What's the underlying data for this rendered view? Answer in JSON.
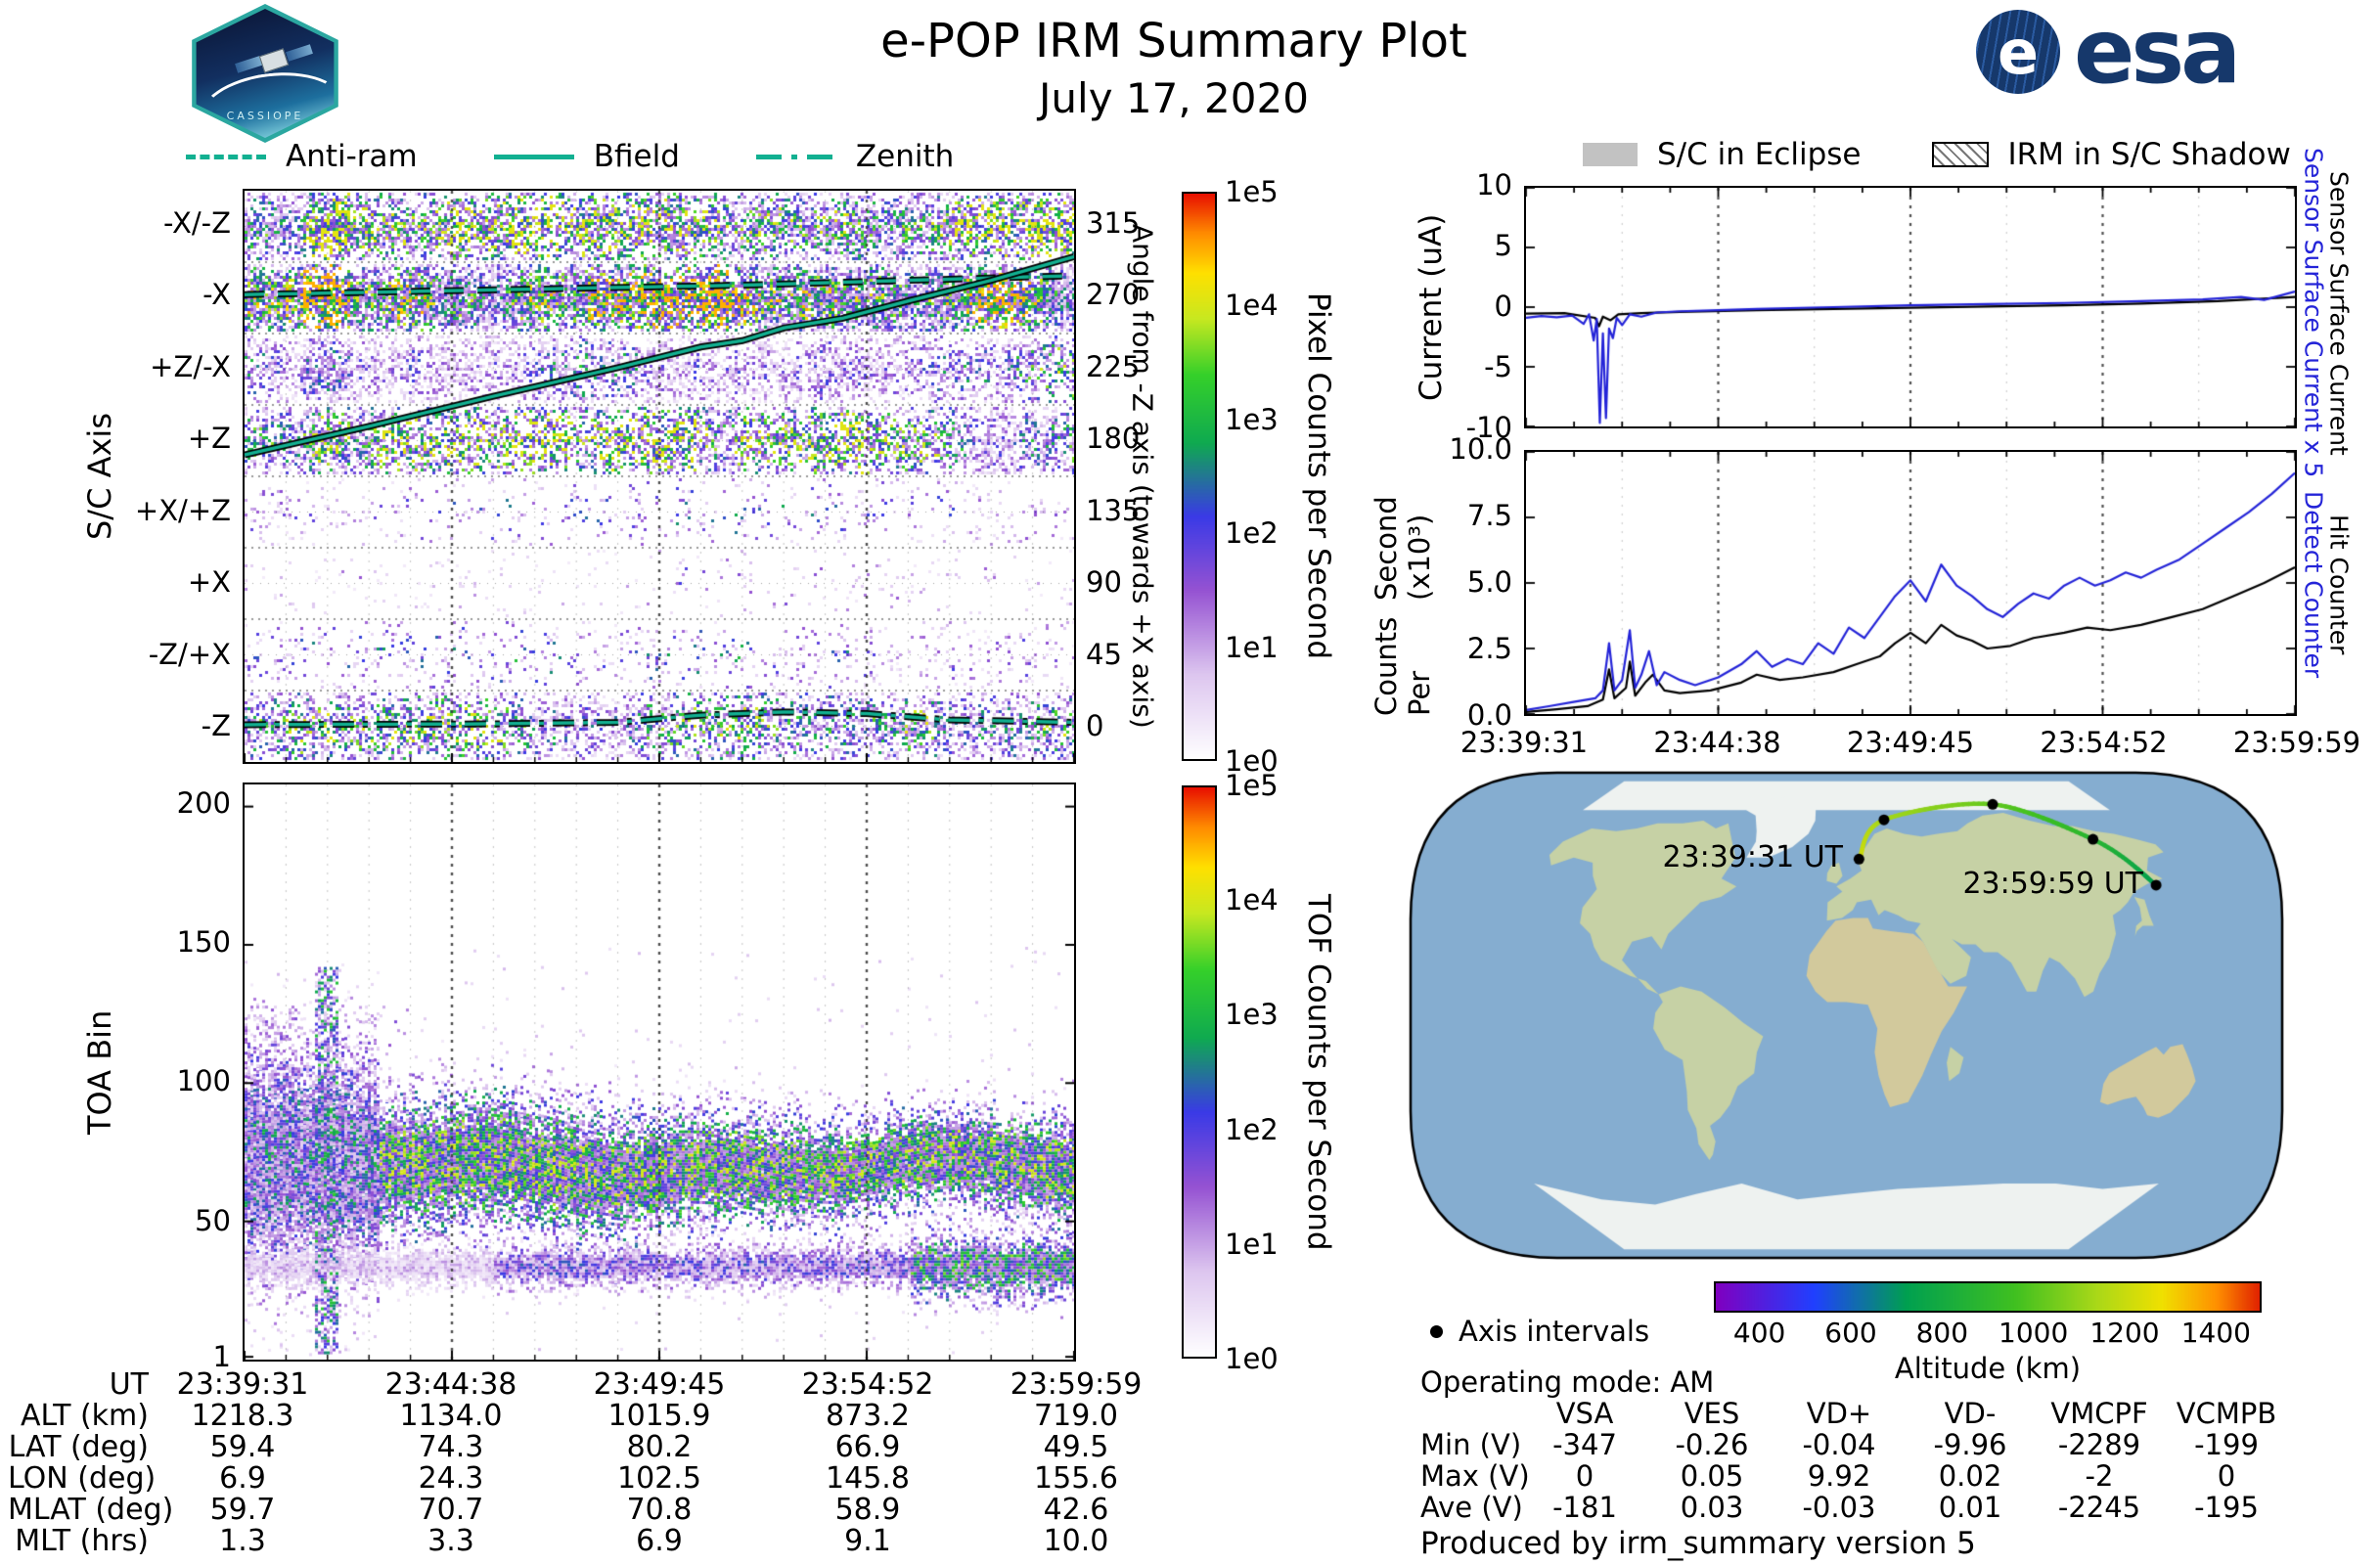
{
  "header": {
    "title": "e-POP IRM Summary Plot",
    "date": "July 17, 2020",
    "cassiope_text": "CASSIOPE",
    "esa_globe": "e",
    "esa_text": "esa"
  },
  "colors": {
    "overlay_teal": "#12b091",
    "series_blue": "#2424d8",
    "series_black": "#000000",
    "esa_blue": "#16386b",
    "ocean": "#85add0",
    "land_green": "#c6d1a5",
    "land_tan": "#d2c99c",
    "ice": "#eef2f0",
    "eclipse_gray": "#c2c2c2",
    "spectro_colormap": [
      "#ffffff",
      "#ddc6ef",
      "#9552d2",
      "#3a3ae6",
      "#0faa50",
      "#35d02a",
      "#c8e820",
      "#ffe000",
      "#ff8c00",
      "#e81000"
    ],
    "spectro_stops": [
      0,
      0.15,
      0.3,
      0.43,
      0.56,
      0.68,
      0.78,
      0.86,
      0.93,
      1.0
    ],
    "alt_colormap": [
      "#8000c0",
      "#2040ff",
      "#00a050",
      "#40c020",
      "#aad818",
      "#f0e000",
      "#ff9000",
      "#e02000"
    ],
    "alt_stops": [
      0,
      0.18,
      0.35,
      0.55,
      0.7,
      0.82,
      0.92,
      1.0
    ]
  },
  "left_legend": {
    "items": [
      {
        "label": "Anti-ram",
        "style": "dashed"
      },
      {
        "label": "Bfield",
        "style": "solid"
      },
      {
        "label": "Zenith",
        "style": "dashdot"
      }
    ]
  },
  "right_legend": {
    "eclipse_label": "S/C in Eclipse",
    "shadow_label": "IRM in S/C Shadow"
  },
  "chart_data": [
    {
      "id": "sc_axis_spectrogram",
      "type": "heatmap",
      "ylabel": "S/C Axis",
      "y_categories": [
        "-X/-Z",
        "-X",
        "+Z/-X",
        "+Z",
        "+X/+Z",
        "+X",
        "-Z/+X",
        "-Z"
      ],
      "right_axis_label": "Angle from -Z axis (towards +X axis)",
      "right_ticks": [
        "315",
        "270",
        "225",
        "180",
        "135",
        "90",
        "45",
        "0"
      ],
      "colorbar": {
        "label": "Pixel Counts per Second",
        "ticks": [
          "1e5",
          "1e4",
          "1e3",
          "1e2",
          "1e1",
          "1e0"
        ]
      },
      "x_range": [
        "23:39:31",
        "23:59:59"
      ],
      "bands": [
        {
          "row": "-X/-Z",
          "intensity": 0.5,
          "fill": 0.72
        },
        {
          "row": "-X",
          "intensity": 0.62,
          "fill": 0.95
        },
        {
          "row": "+Z/-X",
          "intensity": 0.42,
          "fill": 0.55
        },
        {
          "row": "+Z",
          "intensity": 0.48,
          "fill": 0.62
        },
        {
          "row": "+X/+Z",
          "intensity": 0.24,
          "fill": 0.1
        },
        {
          "row": "+X",
          "intensity": 0.18,
          "fill": 0.05
        },
        {
          "row": "-Z/+X",
          "intensity": 0.27,
          "fill": 0.13
        },
        {
          "row": "-Z",
          "intensity": 0.42,
          "fill": 0.55
        }
      ],
      "overlays": [
        {
          "name": "Anti-ram",
          "style": "dashed",
          "points": [
            [
              0,
              272
            ],
            [
              0.2,
              274
            ],
            [
              0.4,
              276
            ],
            [
              0.6,
              278
            ],
            [
              0.8,
              281
            ],
            [
              1,
              284
            ]
          ]
        },
        {
          "name": "Bfield",
          "style": "solid",
          "points": [
            [
              0,
              171
            ],
            [
              0.15,
              189
            ],
            [
              0.3,
              208
            ],
            [
              0.45,
              226
            ],
            [
              0.55,
              239
            ],
            [
              0.6,
              243
            ],
            [
              0.65,
              251
            ],
            [
              0.72,
              257
            ],
            [
              0.8,
              268
            ],
            [
              0.9,
              281
            ],
            [
              1,
              296
            ]
          ]
        },
        {
          "name": "Zenith",
          "style": "dashdot",
          "points": [
            [
              0,
              1
            ],
            [
              0.3,
              1.5
            ],
            [
              0.45,
              2.5
            ],
            [
              0.55,
              7
            ],
            [
              0.65,
              9
            ],
            [
              0.75,
              8
            ],
            [
              0.85,
              4
            ],
            [
              1,
              2.5
            ]
          ]
        }
      ]
    },
    {
      "id": "toa_spectrogram",
      "type": "heatmap",
      "ylabel": "TOA Bin",
      "y_ticks": [
        "200",
        "150",
        "100",
        "50",
        "1"
      ],
      "ylim": [
        0,
        208
      ],
      "colorbar": {
        "label": "TOF Counts per Second",
        "ticks": [
          "1e5",
          "1e4",
          "1e3",
          "1e2",
          "1e1",
          "1e0"
        ]
      },
      "features": [
        {
          "name": "main-band",
          "toa_center": 70,
          "toa_sigma": 13,
          "intensity": 0.6
        },
        {
          "name": "secondary-band",
          "toa_center": 34,
          "toa_sigma": 5,
          "intensity": 0.36
        },
        {
          "name": "early-cloud",
          "x": [
            0,
            0.22
          ],
          "toa": [
            40,
            128
          ],
          "intensity": 0.26
        },
        {
          "name": "burst",
          "x": [
            0.082,
            0.112
          ],
          "toa": [
            2,
            142
          ],
          "intensity": 0.45
        },
        {
          "name": "late-blob",
          "x": [
            0.8,
            1.0
          ],
          "toa_center": 32,
          "toa_sigma": 7,
          "intensity": 0.55
        }
      ]
    },
    {
      "id": "current",
      "type": "line",
      "ylabel": "Current (uA)",
      "ylim": [
        -10,
        10
      ],
      "yticks": [
        10,
        5,
        0,
        -5,
        -10
      ],
      "right_labels": [
        {
          "text": "Sensor Surface Current x 5",
          "color": "#2424d8"
        },
        {
          "text": "Sensor Surface Current",
          "color": "#000000"
        }
      ],
      "series": [
        {
          "name": "Sensor Surface Current x 5",
          "color": "#2424d8",
          "points": [
            [
              0,
              -0.9
            ],
            [
              0.02,
              -0.75
            ],
            [
              0.04,
              -0.85
            ],
            [
              0.06,
              -0.7
            ],
            [
              0.075,
              -1.4
            ],
            [
              0.082,
              -0.6
            ],
            [
              0.088,
              -2.8
            ],
            [
              0.092,
              -1.0
            ],
            [
              0.096,
              -9.7
            ],
            [
              0.1,
              -2.2
            ],
            [
              0.104,
              -9.3
            ],
            [
              0.108,
              -1.8
            ],
            [
              0.113,
              -2.6
            ],
            [
              0.118,
              -0.9
            ],
            [
              0.125,
              -1.5
            ],
            [
              0.135,
              -0.6
            ],
            [
              0.15,
              -0.8
            ],
            [
              0.17,
              -0.45
            ],
            [
              0.2,
              -0.35
            ],
            [
              0.25,
              -0.25
            ],
            [
              0.3,
              -0.15
            ],
            [
              0.4,
              0.0
            ],
            [
              0.5,
              0.15
            ],
            [
              0.6,
              0.25
            ],
            [
              0.7,
              0.35
            ],
            [
              0.8,
              0.5
            ],
            [
              0.88,
              0.65
            ],
            [
              0.93,
              0.85
            ],
            [
              0.96,
              0.6
            ],
            [
              1,
              1.3
            ]
          ]
        },
        {
          "name": "Sensor Surface Current",
          "color": "#000000",
          "points": [
            [
              0,
              -0.55
            ],
            [
              0.05,
              -0.5
            ],
            [
              0.09,
              -0.9
            ],
            [
              0.095,
              -1.6
            ],
            [
              0.1,
              -0.8
            ],
            [
              0.11,
              -1.1
            ],
            [
              0.12,
              -0.6
            ],
            [
              0.15,
              -0.5
            ],
            [
              0.2,
              -0.4
            ],
            [
              0.3,
              -0.25
            ],
            [
              0.4,
              -0.15
            ],
            [
              0.5,
              -0.05
            ],
            [
              0.6,
              0.05
            ],
            [
              0.7,
              0.15
            ],
            [
              0.8,
              0.3
            ],
            [
              0.9,
              0.5
            ],
            [
              1,
              0.85
            ]
          ]
        }
      ]
    },
    {
      "id": "counts",
      "type": "line",
      "ylabel_lines": [
        "Counts Per",
        "Second (x10³)"
      ],
      "ylim": [
        0,
        10
      ],
      "yticks": [
        "10.0",
        "7.5",
        "5.0",
        "2.5",
        "0.0"
      ],
      "x_ticks": [
        "23:39:31",
        "23:44:38",
        "23:49:45",
        "23:54:52",
        "23:59:59"
      ],
      "right_labels": [
        {
          "text": "Detect Counter",
          "color": "#2424d8"
        },
        {
          "text": "Hit Counter",
          "color": "#000000"
        }
      ],
      "series": [
        {
          "name": "Detect Counter",
          "color": "#2424d8",
          "points": [
            [
              0,
              0.15
            ],
            [
              0.03,
              0.3
            ],
            [
              0.06,
              0.45
            ],
            [
              0.09,
              0.6
            ],
            [
              0.1,
              0.9
            ],
            [
              0.108,
              2.7
            ],
            [
              0.115,
              0.9
            ],
            [
              0.125,
              1.3
            ],
            [
              0.135,
              3.2
            ],
            [
              0.142,
              1.0
            ],
            [
              0.15,
              1.5
            ],
            [
              0.16,
              2.4
            ],
            [
              0.17,
              1.1
            ],
            [
              0.18,
              1.6
            ],
            [
              0.2,
              1.3
            ],
            [
              0.22,
              1.1
            ],
            [
              0.25,
              1.4
            ],
            [
              0.28,
              1.9
            ],
            [
              0.3,
              2.4
            ],
            [
              0.32,
              1.8
            ],
            [
              0.34,
              2.1
            ],
            [
              0.36,
              1.9
            ],
            [
              0.38,
              2.7
            ],
            [
              0.4,
              2.3
            ],
            [
              0.42,
              3.3
            ],
            [
              0.44,
              2.9
            ],
            [
              0.46,
              3.7
            ],
            [
              0.48,
              4.5
            ],
            [
              0.5,
              5.1
            ],
            [
              0.52,
              4.3
            ],
            [
              0.54,
              5.7
            ],
            [
              0.56,
              4.9
            ],
            [
              0.58,
              4.5
            ],
            [
              0.6,
              4.0
            ],
            [
              0.62,
              3.7
            ],
            [
              0.64,
              4.2
            ],
            [
              0.66,
              4.6
            ],
            [
              0.68,
              4.4
            ],
            [
              0.7,
              4.9
            ],
            [
              0.72,
              5.2
            ],
            [
              0.74,
              4.9
            ],
            [
              0.76,
              5.1
            ],
            [
              0.78,
              5.4
            ],
            [
              0.8,
              5.2
            ],
            [
              0.82,
              5.5
            ],
            [
              0.85,
              5.9
            ],
            [
              0.88,
              6.5
            ],
            [
              0.91,
              7.1
            ],
            [
              0.94,
              7.7
            ],
            [
              0.97,
              8.4
            ],
            [
              1,
              9.2
            ]
          ]
        },
        {
          "name": "Hit Counter",
          "color": "#000000",
          "points": [
            [
              0,
              0.08
            ],
            [
              0.04,
              0.18
            ],
            [
              0.08,
              0.3
            ],
            [
              0.1,
              0.55
            ],
            [
              0.108,
              1.7
            ],
            [
              0.115,
              0.6
            ],
            [
              0.13,
              1.0
            ],
            [
              0.135,
              2.0
            ],
            [
              0.142,
              0.7
            ],
            [
              0.155,
              1.2
            ],
            [
              0.165,
              1.5
            ],
            [
              0.18,
              0.9
            ],
            [
              0.2,
              0.8
            ],
            [
              0.24,
              0.9
            ],
            [
              0.28,
              1.2
            ],
            [
              0.3,
              1.5
            ],
            [
              0.33,
              1.3
            ],
            [
              0.36,
              1.4
            ],
            [
              0.4,
              1.6
            ],
            [
              0.43,
              1.9
            ],
            [
              0.46,
              2.2
            ],
            [
              0.48,
              2.7
            ],
            [
              0.5,
              3.1
            ],
            [
              0.52,
              2.7
            ],
            [
              0.54,
              3.4
            ],
            [
              0.56,
              3.0
            ],
            [
              0.58,
              2.8
            ],
            [
              0.6,
              2.5
            ],
            [
              0.63,
              2.6
            ],
            [
              0.66,
              2.9
            ],
            [
              0.7,
              3.1
            ],
            [
              0.73,
              3.3
            ],
            [
              0.76,
              3.2
            ],
            [
              0.8,
              3.4
            ],
            [
              0.84,
              3.7
            ],
            [
              0.88,
              4.0
            ],
            [
              0.92,
              4.5
            ],
            [
              0.96,
              5.0
            ],
            [
              1,
              5.6
            ]
          ]
        }
      ]
    },
    {
      "id": "ground_track",
      "type": "map",
      "track": {
        "time": [
          "23:39:31",
          "23:44:38",
          "23:49:45",
          "23:54:52",
          "23:59:59"
        ],
        "lon": [
          6.9,
          24.3,
          102.5,
          145.8,
          155.6
        ],
        "lat": [
          59.4,
          74.3,
          80.2,
          66.9,
          49.5
        ],
        "alt_km": [
          1218.3,
          1134.0,
          1015.9,
          873.2,
          719.0
        ]
      },
      "start_label": "23:39:31 UT",
      "end_label": "23:59:59 UT",
      "colorbar": {
        "label": "Altitude (km)",
        "ticks": [
          "400",
          "600",
          "800",
          "1000",
          "1200",
          "1400"
        ],
        "range": [
          300,
          1500
        ]
      }
    }
  ],
  "bottom_axis": {
    "row_labels": [
      "UT",
      "ALT (km)",
      "LAT (deg)",
      "LON (deg)",
      "MLAT (deg)",
      "MLT (hrs)"
    ],
    "columns": [
      [
        "23:39:31",
        "1218.3",
        "59.4",
        "6.9",
        "59.7",
        "1.3"
      ],
      [
        "23:44:38",
        "1134.0",
        "74.3",
        "24.3",
        "70.7",
        "3.3"
      ],
      [
        "23:49:45",
        "1015.9",
        "80.2",
        "102.5",
        "70.8",
        "6.9"
      ],
      [
        "23:54:52",
        "873.2",
        "66.9",
        "145.8",
        "58.9",
        "9.1"
      ],
      [
        "23:59:59",
        "719.0",
        "49.5",
        "155.6",
        "42.6",
        "10.0"
      ]
    ]
  },
  "info": {
    "axis_intervals_label": "Axis intervals",
    "operating_mode": "Operating mode: AM",
    "footer": "Produced by irm_summary version 5"
  },
  "voltage_table": {
    "columns": [
      "VSA",
      "VES",
      "VD+",
      "VD-",
      "VMCPF",
      "VCMPB"
    ],
    "rows": [
      {
        "label": "Min (V)",
        "values": [
          "-347",
          "-0.26",
          "-0.04",
          "-9.96",
          "-2289",
          "-199"
        ]
      },
      {
        "label": "Max (V)",
        "values": [
          "0",
          "0.05",
          "9.92",
          "0.02",
          "-2",
          "0"
        ]
      },
      {
        "label": "Ave (V)",
        "values": [
          "-181",
          "0.03",
          "-0.03",
          "0.01",
          "-2245",
          "-195"
        ]
      }
    ]
  }
}
